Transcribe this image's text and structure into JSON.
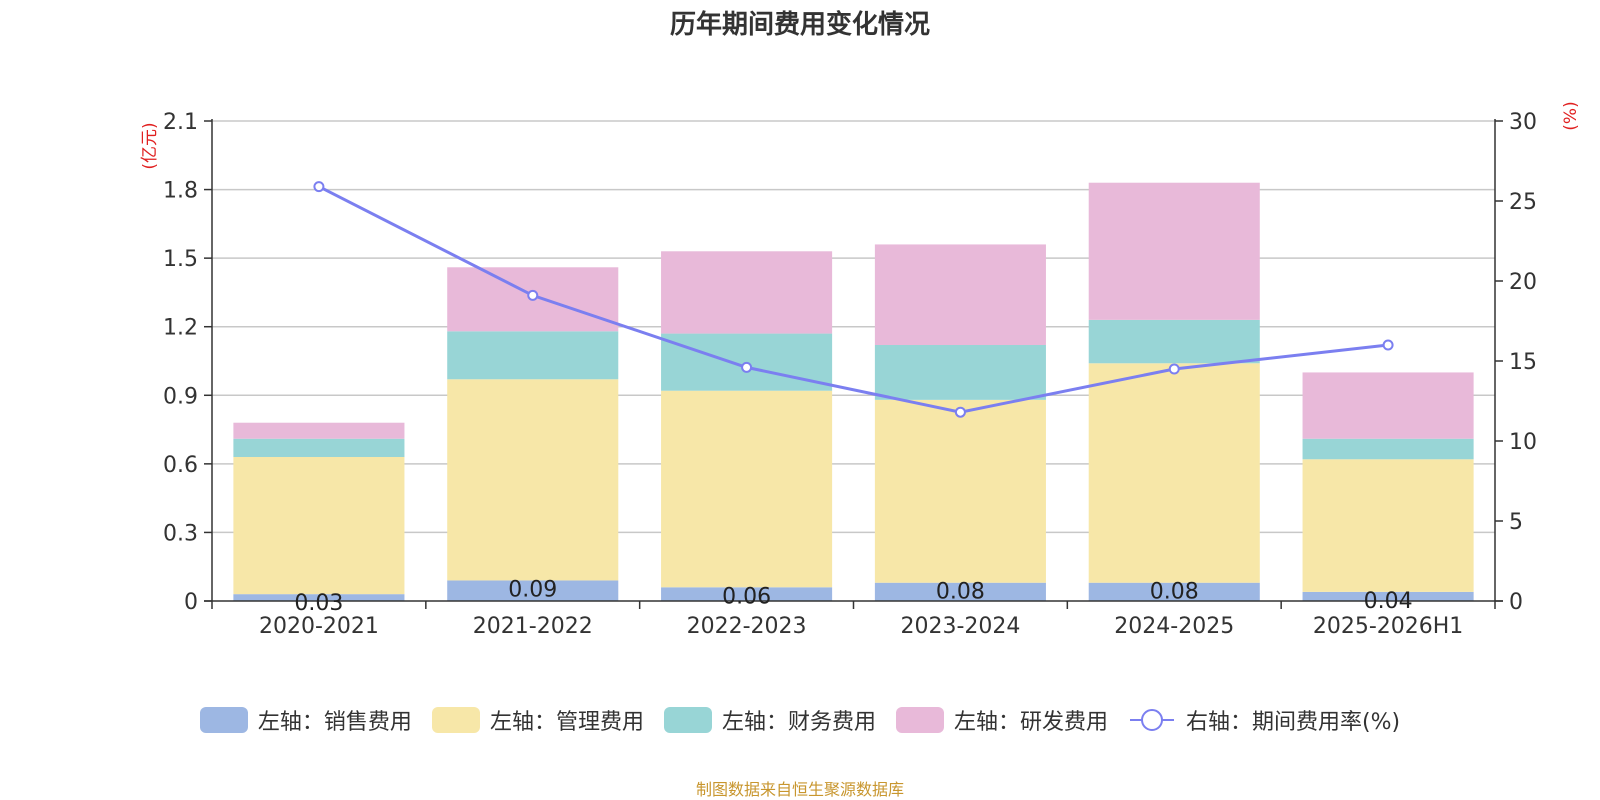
{
  "chart_data": {
    "type": "bar",
    "title": "历年期间费用变化情况",
    "categories": [
      "2020-2021",
      "2021-2022",
      "2022-2023",
      "2023-2024",
      "2024-2025",
      "2025-2026H1"
    ],
    "left_axis": {
      "unit": "(亿元)",
      "ylim": [
        0,
        2.1
      ],
      "ticks": [
        0,
        0.3,
        0.6,
        0.9,
        1.2,
        1.5,
        1.8,
        2.1
      ],
      "tick_labels": [
        "0",
        "0.3",
        "0.6",
        "0.9",
        "1.2",
        "1.5",
        "1.8",
        "2.1"
      ]
    },
    "right_axis": {
      "unit": "(%)",
      "ylim": [
        0,
        30
      ],
      "ticks": [
        0,
        5,
        10,
        15,
        20,
        25,
        30
      ]
    },
    "series": [
      {
        "name": "左轴：销售费用",
        "type": "bar",
        "axis": "left",
        "color": "#9db7e3",
        "values": [
          0.03,
          0.09,
          0.06,
          0.08,
          0.08,
          0.04
        ],
        "labels": [
          "0.03",
          "0.09",
          "0.06",
          "0.08",
          "0.08",
          "0.04"
        ]
      },
      {
        "name": "左轴：管理费用",
        "type": "bar",
        "axis": "left",
        "color": "#f7e7a8",
        "values": [
          0.6,
          0.88,
          0.86,
          0.8,
          0.96,
          0.58
        ]
      },
      {
        "name": "左轴：财务费用",
        "type": "bar",
        "axis": "left",
        "color": "#98d5d6",
        "values": [
          0.08,
          0.21,
          0.25,
          0.24,
          0.19,
          0.09
        ]
      },
      {
        "name": "左轴：研发费用",
        "type": "bar",
        "axis": "left",
        "color": "#e8b9d9",
        "values": [
          0.07,
          0.28,
          0.36,
          0.44,
          0.6,
          0.29
        ]
      },
      {
        "name": "右轴：期间费用率(%)",
        "type": "line",
        "axis": "right",
        "color": "#7b7ff0",
        "values": [
          25.9,
          19.1,
          14.6,
          11.8,
          14.5,
          16.0
        ]
      }
    ],
    "grid": true,
    "legend_position": "bottom"
  },
  "footer": {
    "source": "制图数据来自恒生聚源数据库"
  }
}
